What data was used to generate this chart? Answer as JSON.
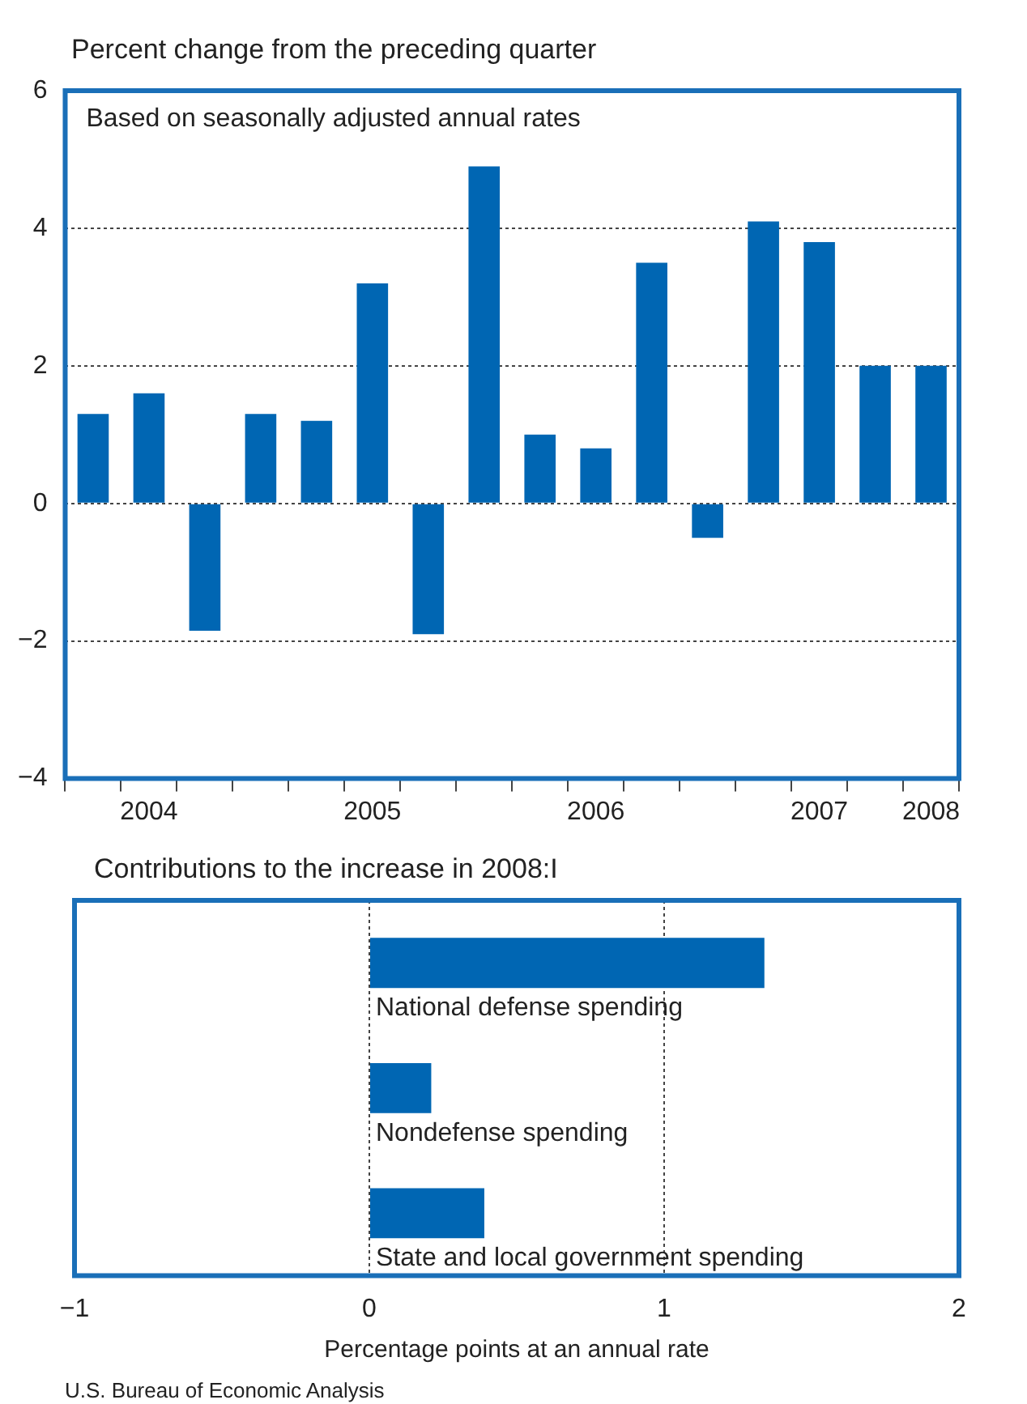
{
  "chart_data": [
    {
      "type": "bar",
      "title": "Percent change from the preceding quarter",
      "annotations": [
        "Based on seasonally adjusted annual rates"
      ],
      "categories": [
        null,
        "2004",
        null,
        null,
        null,
        "2005",
        null,
        null,
        null,
        "2006",
        null,
        null,
        null,
        "2007",
        null,
        "2008"
      ],
      "values": [
        1.3,
        1.6,
        -1.85,
        1.3,
        1.2,
        3.2,
        -1.9,
        4.9,
        1.0,
        0.8,
        3.5,
        -0.5,
        4.1,
        3.8,
        2.0,
        2.0
      ],
      "color": "#0066b3",
      "ylim": [
        -4,
        6
      ],
      "yticks": [
        {
          "value": -4,
          "label": "−4"
        },
        {
          "value": -2,
          "label": "−2"
        },
        0,
        2,
        4,
        6
      ],
      "grid": "y"
    },
    {
      "type": "bar",
      "orientation": "horizontal",
      "title": "Contributions to the increase in 2008:I",
      "xlabel": "Percentage points at an annual rate",
      "annotations": [
        "U.S. Bureau of Economic Analysis"
      ],
      "categories": [
        "National defense spending",
        "Nondefense spending",
        "State and local government spending"
      ],
      "values": [
        1.34,
        0.21,
        0.39
      ],
      "color": "#0066b3",
      "xlim": [
        -1,
        2
      ],
      "xticks": [
        {
          "value": -1,
          "label": "−1"
        },
        0,
        1,
        2
      ],
      "grid": "x",
      "tick_labels": "x"
    }
  ]
}
